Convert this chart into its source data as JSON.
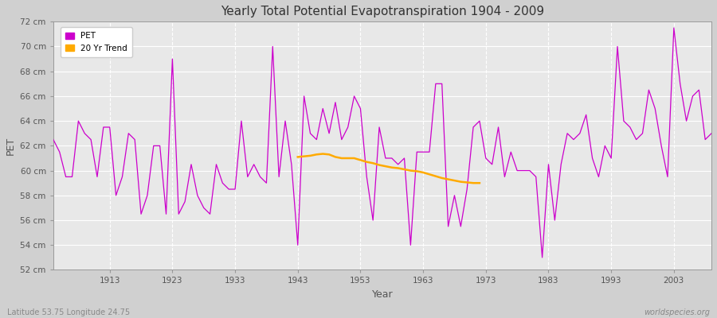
{
  "title": "Yearly Total Potential Evapotranspiration 1904 - 2009",
  "xlabel": "Year",
  "ylabel": "PET",
  "footnote_left": "Latitude 53.75 Longitude 24.75",
  "footnote_right": "worldspecies.org",
  "ylim": [
    52,
    72
  ],
  "xlim": [
    1904,
    2009
  ],
  "ytick_labels": [
    "52 cm",
    "54 cm",
    "56 cm",
    "58 cm",
    "60 cm",
    "62 cm",
    "64 cm",
    "66 cm",
    "68 cm",
    "70 cm",
    "72 cm"
  ],
  "ytick_values": [
    52,
    54,
    56,
    58,
    60,
    62,
    64,
    66,
    68,
    70,
    72
  ],
  "xtick_values": [
    1913,
    1923,
    1933,
    1943,
    1953,
    1963,
    1973,
    1983,
    1993,
    2003
  ],
  "pet_color": "#cc00cc",
  "trend_color": "#ffaa00",
  "fig_bg_color": "#d0d0d0",
  "plot_bg_color": "#e8e8e8",
  "grid_color": "#ffffff",
  "years": [
    1904,
    1905,
    1906,
    1907,
    1908,
    1909,
    1910,
    1911,
    1912,
    1913,
    1914,
    1915,
    1916,
    1917,
    1918,
    1919,
    1920,
    1921,
    1922,
    1923,
    1924,
    1925,
    1926,
    1927,
    1928,
    1929,
    1930,
    1931,
    1932,
    1933,
    1934,
    1935,
    1936,
    1937,
    1938,
    1939,
    1940,
    1941,
    1942,
    1943,
    1944,
    1945,
    1946,
    1947,
    1948,
    1949,
    1950,
    1951,
    1952,
    1953,
    1954,
    1955,
    1956,
    1957,
    1958,
    1959,
    1960,
    1961,
    1962,
    1963,
    1964,
    1965,
    1966,
    1967,
    1968,
    1969,
    1970,
    1971,
    1972,
    1973,
    1974,
    1975,
    1976,
    1977,
    1978,
    1979,
    1980,
    1981,
    1982,
    1983,
    1984,
    1985,
    1986,
    1987,
    1988,
    1989,
    1990,
    1991,
    1992,
    1993,
    1994,
    1995,
    1996,
    1997,
    1998,
    1999,
    2000,
    2001,
    2002,
    2003,
    2004,
    2005,
    2006,
    2007,
    2008,
    2009
  ],
  "pet_values": [
    62.5,
    61.5,
    59.5,
    59.5,
    64.0,
    63.0,
    62.5,
    59.5,
    63.5,
    63.5,
    58.0,
    59.5,
    63.0,
    62.5,
    56.5,
    58.0,
    62.0,
    62.0,
    56.5,
    69.0,
    56.5,
    57.5,
    60.5,
    58.0,
    57.0,
    56.5,
    60.5,
    59.0,
    58.5,
    58.5,
    64.0,
    59.5,
    60.5,
    59.5,
    59.0,
    70.0,
    59.5,
    64.0,
    60.5,
    54.0,
    66.0,
    63.0,
    62.5,
    65.0,
    63.0,
    65.5,
    62.5,
    63.5,
    66.0,
    65.0,
    59.5,
    56.0,
    63.5,
    61.0,
    61.0,
    60.5,
    61.0,
    54.0,
    61.5,
    61.5,
    61.5,
    67.0,
    67.0,
    55.5,
    58.0,
    55.5,
    58.5,
    63.5,
    64.0,
    61.0,
    60.5,
    63.5,
    59.5,
    61.5,
    60.0,
    60.0,
    60.0,
    59.5,
    53.0,
    60.5,
    56.0,
    60.5,
    63.0,
    62.5,
    63.0,
    64.5,
    61.0,
    59.5,
    62.0,
    61.0,
    70.0,
    64.0,
    63.5,
    62.5,
    63.0,
    66.5,
    65.0,
    62.0,
    59.5,
    71.5,
    67.0,
    64.0,
    66.0,
    66.5,
    62.5,
    63.0
  ],
  "trend_years": [
    1943,
    1944,
    1945,
    1946,
    1947,
    1948,
    1949,
    1950,
    1951,
    1952,
    1953,
    1954,
    1955,
    1956,
    1957,
    1958,
    1959,
    1960,
    1961,
    1962,
    1963,
    1964,
    1965,
    1966,
    1967,
    1968,
    1969,
    1970,
    1971,
    1972
  ],
  "trend_values": [
    61.1,
    61.15,
    61.2,
    61.3,
    61.35,
    61.3,
    61.1,
    61.0,
    61.0,
    61.0,
    60.85,
    60.7,
    60.6,
    60.45,
    60.35,
    60.25,
    60.2,
    60.1,
    60.0,
    59.95,
    59.85,
    59.7,
    59.55,
    59.4,
    59.3,
    59.2,
    59.1,
    59.05,
    59.0,
    59.0
  ]
}
